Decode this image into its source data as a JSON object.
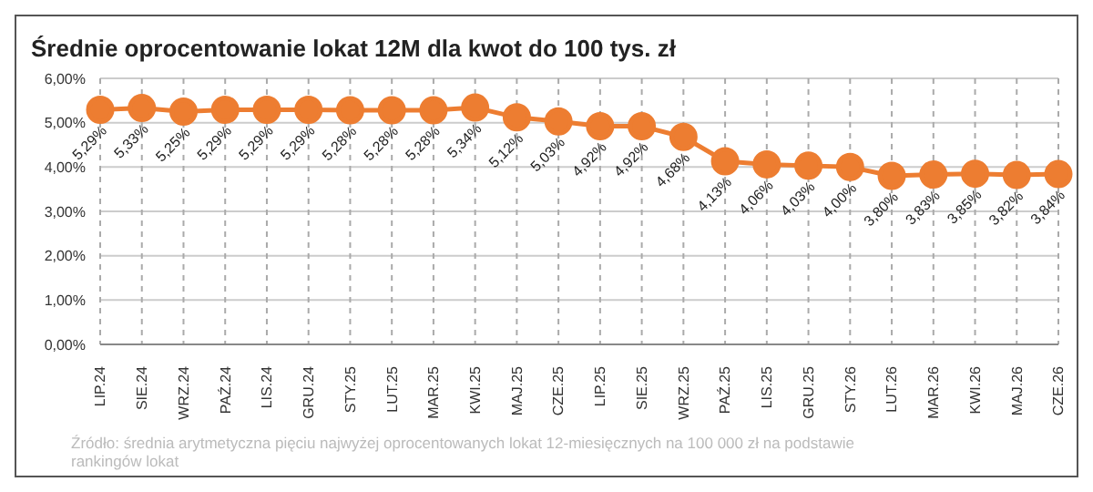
{
  "chart_data": {
    "type": "line",
    "title": "Średnie oprocentowanie lokat 12M dla kwot do 100 tys. zł",
    "categories": [
      "LIP.24",
      "SIE.24",
      "WRZ.24",
      "PAŹ.24",
      "LIS.24",
      "GRU.24",
      "STY.25",
      "LUT.25",
      "MAR.25",
      "KWI.25",
      "MAJ.25",
      "CZE.25",
      "LIP.25",
      "SIE.25",
      "WRZ.25",
      "PAŹ.25",
      "LIS.25",
      "GRU.25",
      "STY.26",
      "LUT.26",
      "MAR.26",
      "KWI.26",
      "MAJ.26",
      "CZE.26"
    ],
    "series": [
      {
        "color": "#ed7d31",
        "values": [
          5.29,
          5.33,
          5.25,
          5.29,
          5.29,
          5.29,
          5.28,
          5.28,
          5.28,
          5.34,
          5.12,
          5.03,
          4.92,
          4.92,
          4.68,
          4.13,
          4.06,
          4.03,
          4.0,
          3.8,
          3.83,
          3.85,
          3.82,
          3.84
        ],
        "value_labels": [
          "5,29%",
          "5,33%",
          "5,25%",
          "5,29%",
          "5,29%",
          "5,29%",
          "5,28%",
          "5,28%",
          "5,28%",
          "5,34%",
          "5,12%",
          "5,03%",
          "4,92%",
          "4,92%",
          "4,68%",
          "4,13%",
          "4,06%",
          "4,03%",
          "4,00%",
          "3,80%",
          "3,83%",
          "3,85%",
          "3,82%",
          "3,84%"
        ]
      }
    ],
    "ylim": [
      0,
      6
    ],
    "yticks": [
      {
        "value": 0,
        "label": "0,00%"
      },
      {
        "value": 1,
        "label": "1,00%"
      },
      {
        "value": 2,
        "label": "2,00%"
      },
      {
        "value": 3,
        "label": "3,00%"
      },
      {
        "value": 4,
        "label": "4,00%"
      },
      {
        "value": 5,
        "label": "5,00%"
      },
      {
        "value": 6,
        "label": "6,00%"
      }
    ],
    "grid": true,
    "marker": "circle",
    "line_style": "solid",
    "legend": false,
    "annotations": [
      "Źródło: średnia arytmetyczna pięciu najwyżej oprocentowanych lokat 12-miesięcznych na 100 000 zł na podstawie rankingów lokat"
    ]
  }
}
